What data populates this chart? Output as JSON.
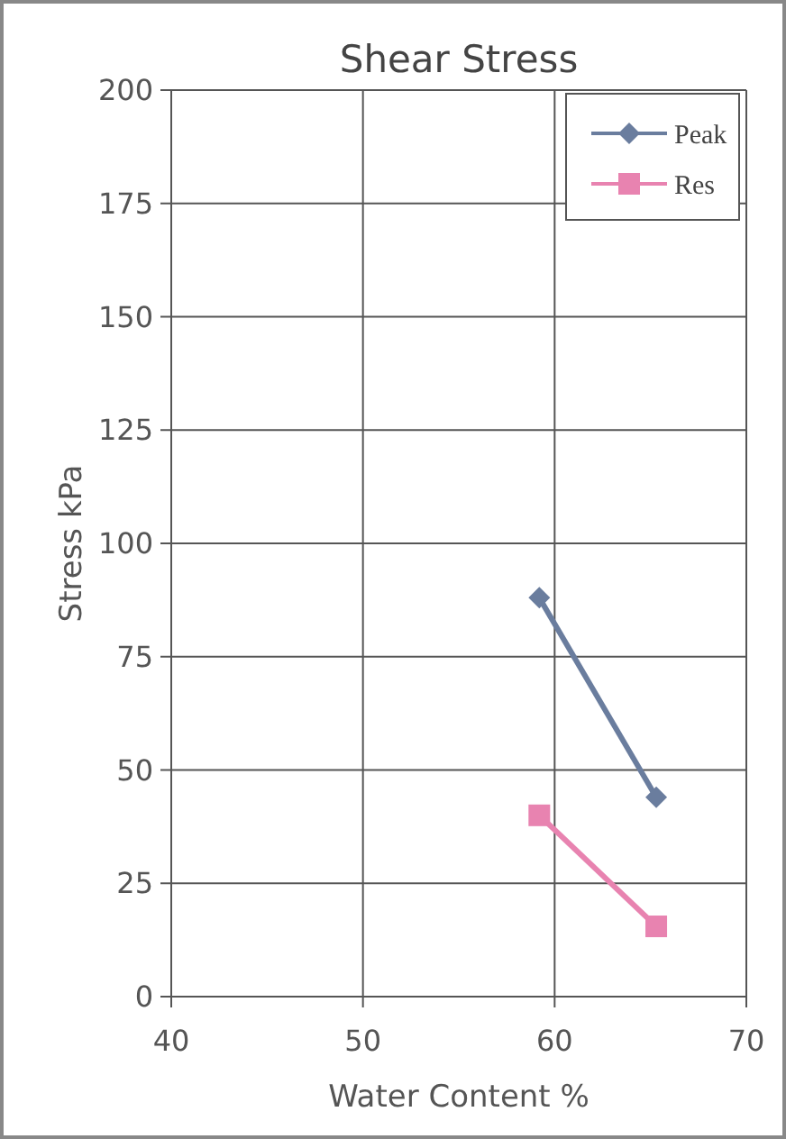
{
  "chart_data": {
    "type": "line",
    "title": "Shear Stress",
    "xlabel": "Water Content %",
    "ylabel": "Stress kPa",
    "xlim": [
      40,
      70
    ],
    "xticks": [
      40,
      50,
      60,
      70
    ],
    "ylim": [
      0,
      200
    ],
    "yticks": [
      0,
      25,
      50,
      75,
      100,
      125,
      150,
      175,
      200
    ],
    "grid": true,
    "legend": "top right",
    "x": [
      59.2,
      65.3
    ],
    "series": [
      {
        "name": "Peak",
        "color": "#6a7d9e",
        "marker": "diamond",
        "values": [
          88,
          44
        ]
      },
      {
        "name": "Res",
        "color": "#e883b0",
        "marker": "square",
        "values": [
          40,
          15.5
        ]
      }
    ]
  }
}
